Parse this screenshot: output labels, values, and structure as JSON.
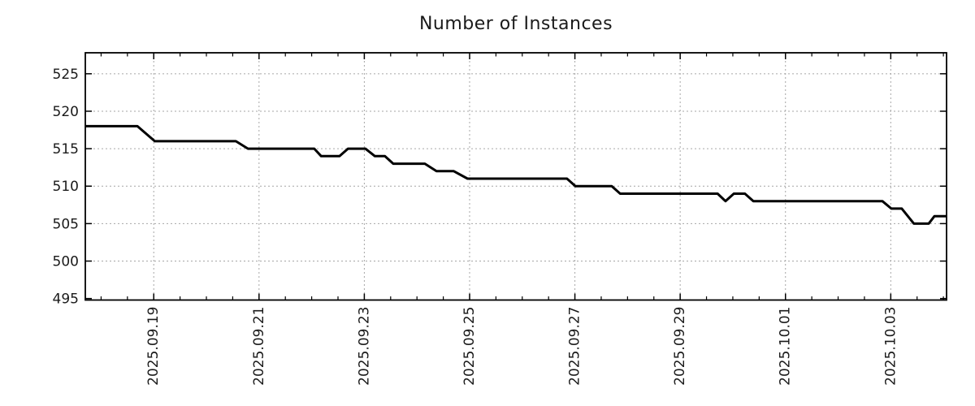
{
  "title": "Number of Instances",
  "chart_data": {
    "type": "line",
    "title": "Number of Instances",
    "xlabel": "",
    "ylabel": "",
    "legend": "none",
    "grid": true,
    "x_unit": "days since 2025-09-17 00:00",
    "xlim": [
      0.7,
      17.06
    ],
    "ylim": [
      494.8,
      527.8
    ],
    "y_ticks": [
      495,
      500,
      505,
      510,
      515,
      520,
      525
    ],
    "x_major_ticks": [
      {
        "t": 2,
        "label": "2025.09.19"
      },
      {
        "t": 4,
        "label": "2025.09.21"
      },
      {
        "t": 6,
        "label": "2025.09.23"
      },
      {
        "t": 8,
        "label": "2025.09.25"
      },
      {
        "t": 10,
        "label": "2025.09.27"
      },
      {
        "t": 12,
        "label": "2025.09.29"
      },
      {
        "t": 14,
        "label": "2025.10.01"
      },
      {
        "t": 16,
        "label": "2025.10.03"
      }
    ],
    "x_minor_step": 0.5,
    "line_color": "#000000",
    "line_width": 3,
    "grid_color": "#a6a6a6",
    "axis_color": "#000000",
    "background": "#ffffff",
    "points": [
      [
        0.7,
        518
      ],
      [
        1.69,
        518
      ],
      [
        2.02,
        516
      ],
      [
        3.56,
        516
      ],
      [
        3.79,
        515
      ],
      [
        5.05,
        515
      ],
      [
        5.18,
        514
      ],
      [
        5.53,
        514
      ],
      [
        5.69,
        515
      ],
      [
        6.02,
        515
      ],
      [
        6.2,
        514
      ],
      [
        6.39,
        514
      ],
      [
        6.55,
        513
      ],
      [
        7.15,
        513
      ],
      [
        7.37,
        512
      ],
      [
        7.7,
        512
      ],
      [
        7.96,
        511
      ],
      [
        9.85,
        511
      ],
      [
        10.01,
        510
      ],
      [
        10.7,
        510
      ],
      [
        10.86,
        509
      ],
      [
        12.71,
        509
      ],
      [
        12.86,
        508
      ],
      [
        13.02,
        509
      ],
      [
        13.23,
        509
      ],
      [
        13.39,
        508
      ],
      [
        15.84,
        508
      ],
      [
        16.01,
        507
      ],
      [
        16.21,
        507
      ],
      [
        16.44,
        505
      ],
      [
        16.72,
        505
      ],
      [
        16.83,
        506
      ],
      [
        17.06,
        506
      ]
    ]
  }
}
